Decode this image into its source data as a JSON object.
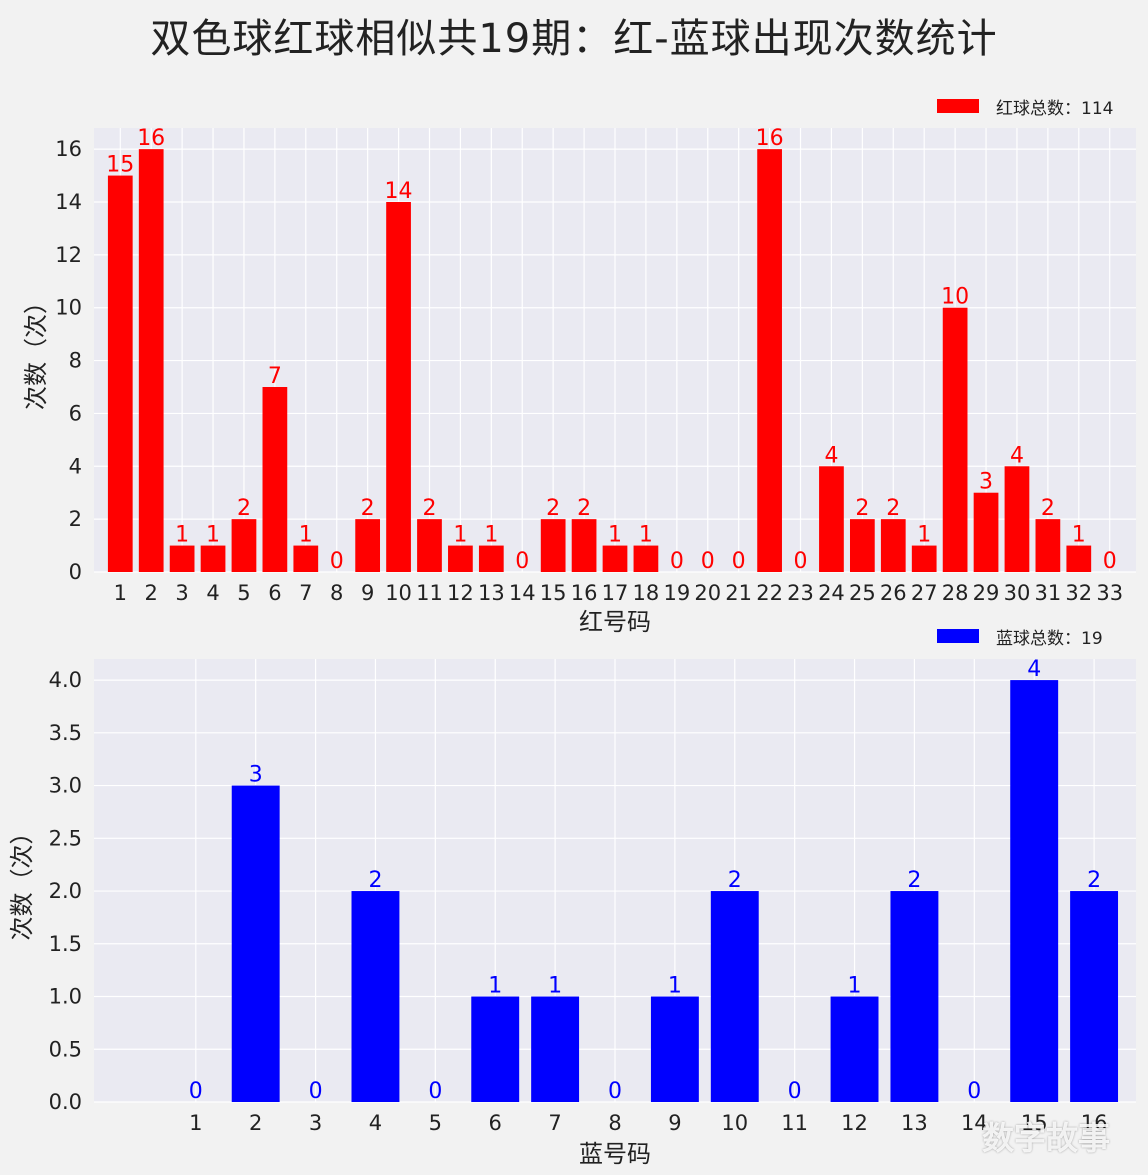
{
  "title": "双色球红球相似共19期：红-蓝球出现次数统计",
  "watermark": "数字故事",
  "chart_data": [
    {
      "type": "bar",
      "name": "red",
      "categories": [
        "1",
        "2",
        "3",
        "4",
        "5",
        "6",
        "7",
        "8",
        "9",
        "10",
        "11",
        "12",
        "13",
        "14",
        "15",
        "16",
        "17",
        "18",
        "19",
        "20",
        "21",
        "22",
        "23",
        "24",
        "25",
        "26",
        "27",
        "28",
        "29",
        "30",
        "31",
        "32",
        "33"
      ],
      "values": [
        15,
        16,
        1,
        1,
        2,
        7,
        1,
        0,
        2,
        14,
        2,
        1,
        1,
        0,
        2,
        2,
        1,
        1,
        0,
        0,
        0,
        16,
        0,
        4,
        2,
        2,
        1,
        10,
        3,
        4,
        2,
        1,
        0
      ],
      "xlabel": "红号码",
      "ylabel": "次数（次）",
      "ylim": [
        0,
        16.8
      ],
      "yticks": [
        "0",
        "2",
        "4",
        "6",
        "8",
        "10",
        "12",
        "14",
        "16"
      ],
      "legend": "红球总数：114",
      "legend_position": "top-right",
      "grid": true,
      "color": "#ff0000"
    },
    {
      "type": "bar",
      "name": "blue",
      "categories": [
        "1",
        "2",
        "3",
        "4",
        "5",
        "6",
        "7",
        "8",
        "9",
        "10",
        "11",
        "12",
        "13",
        "14",
        "15",
        "16"
      ],
      "values": [
        0,
        3,
        0,
        2,
        0,
        1,
        1,
        0,
        1,
        2,
        0,
        1,
        2,
        0,
        4,
        2
      ],
      "xlabel": "蓝号码",
      "ylabel": "次数（次）",
      "ylim": [
        0,
        4.2
      ],
      "yticks": [
        "0.0",
        "0.5",
        "1.0",
        "1.5",
        "2.0",
        "2.5",
        "3.0",
        "3.5",
        "4.0"
      ],
      "legend": "蓝球总数：19",
      "legend_position": "top-right",
      "grid": true,
      "color": "#0000ff"
    }
  ]
}
